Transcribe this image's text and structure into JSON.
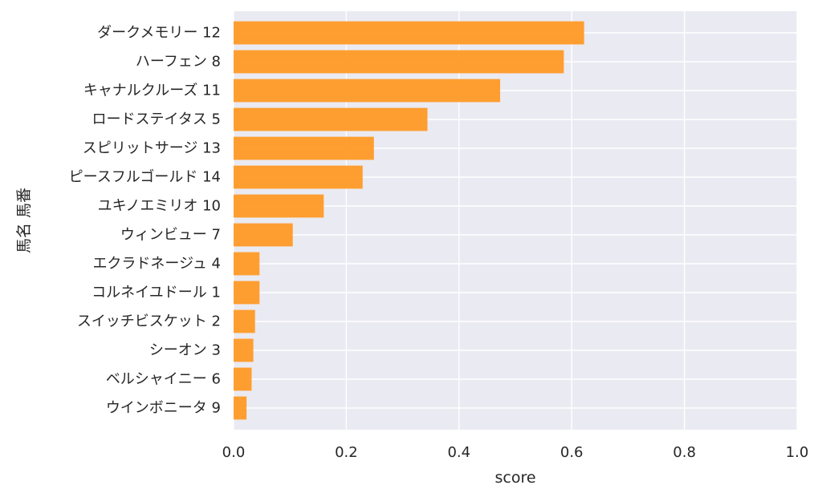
{
  "chart_data": {
    "type": "bar",
    "orientation": "horizontal",
    "title": "",
    "xlabel": "score",
    "ylabel": "馬名 馬番",
    "xlim": [
      0.0,
      1.0
    ],
    "xticks": [
      0.0,
      0.2,
      0.4,
      0.6,
      0.8,
      1.0
    ],
    "xtick_labels": [
      "0.0",
      "0.2",
      "0.4",
      "0.6",
      "0.8",
      "1.0"
    ],
    "categories": [
      "ダークメモリー 12",
      "ハーフェン 8",
      "キャナルクルーズ 11",
      "ロードステイタス 5",
      "スピリットサージ 13",
      "ピースフルゴールド 14",
      "ユキノエミリオ 10",
      "ウィンビュー 7",
      "エクラドネージュ 4",
      "コルネイユドール 1",
      "スイッチビスケット 2",
      "シーオン 3",
      "ベルシャイニー 6",
      "ウインボニータ 9"
    ],
    "values": [
      0.622,
      0.586,
      0.473,
      0.344,
      0.249,
      0.229,
      0.16,
      0.105,
      0.046,
      0.046,
      0.038,
      0.035,
      0.032,
      0.023
    ],
    "grid": true,
    "bar_color": "#FF9A25",
    "background_color": "#EAEAF2",
    "grid_color": "#FFFFFF"
  }
}
